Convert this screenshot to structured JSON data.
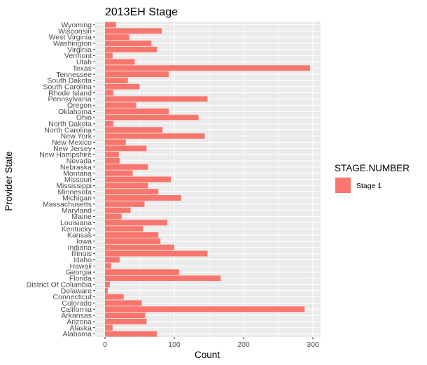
{
  "chart_data": {
    "type": "bar",
    "orientation": "horizontal",
    "title": "2013EH Stage",
    "xlabel": "Count",
    "ylabel": "Provider State",
    "xlim": [
      0,
      310
    ],
    "xticks": [
      0,
      100,
      200,
      300
    ],
    "grid": true,
    "legend_position": "right",
    "legend_title": "STAGE.NUMBER",
    "categories": [
      "Alabama",
      "Alaska",
      "Arizona",
      "Arkansas",
      "California",
      "Colorado",
      "Connecticut",
      "Delaware",
      "District Of Columbia",
      "Florida",
      "Georgia",
      "Hawaii",
      "Idaho",
      "Illinois",
      "Indiana",
      "Iowa",
      "Kansas",
      "Kentucky",
      "Louisiana",
      "Maine",
      "Maryland",
      "Massachusetts",
      "Michigan",
      "Minnesota",
      "Mississippi",
      "Missouri",
      "Montana",
      "Nebraska",
      "Nevada",
      "New Hampshire",
      "New Jersey",
      "New Mexico",
      "New York",
      "North Carolina",
      "North Dakota",
      "Ohio",
      "Oklahoma",
      "Oregon",
      "Pennsylvania",
      "Rhode Island",
      "South Carolina",
      "South Dakota",
      "Tennessee",
      "Texas",
      "Utah",
      "Vermont",
      "Virginia",
      "Washington",
      "West Virginia",
      "Wisconsin",
      "Wyoming"
    ],
    "series": [
      {
        "name": "Stage 1",
        "color": "#F8766D",
        "values": [
          75,
          11,
          60,
          58,
          288,
          53,
          27,
          4,
          7,
          167,
          107,
          9,
          21,
          148,
          100,
          80,
          77,
          55,
          90,
          24,
          37,
          57,
          110,
          77,
          62,
          95,
          40,
          62,
          21,
          20,
          60,
          30,
          144,
          83,
          12,
          135,
          92,
          45,
          148,
          12,
          50,
          33,
          92,
          296,
          43,
          11,
          75,
          67,
          35,
          82,
          16
        ]
      }
    ]
  }
}
